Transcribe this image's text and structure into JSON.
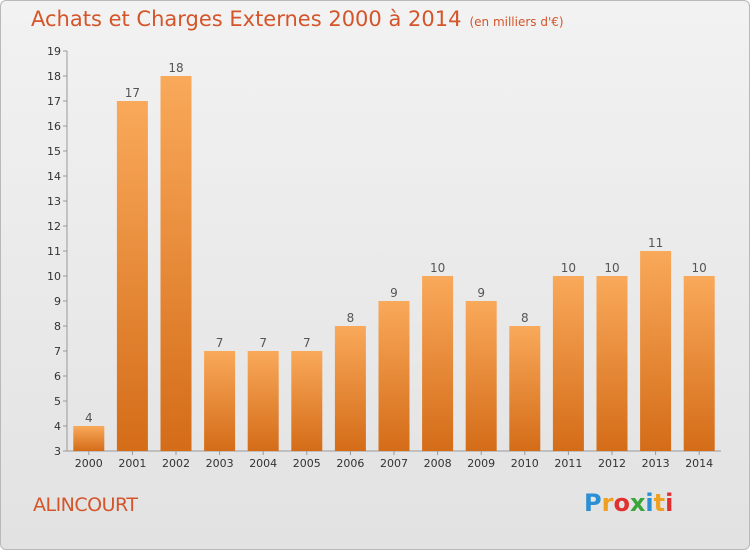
{
  "header": {
    "title": "Achats et Charges Externes 2000 à 2014",
    "unit": "(en milliers d'€)"
  },
  "footer": {
    "commune": "ALINCOURT",
    "logo_letters": [
      "P",
      "r",
      "o",
      "x",
      "i",
      "t",
      "i"
    ],
    "logo_colors": [
      "#2a8fd4",
      "#f0a020",
      "#e03030",
      "#3aa53a",
      "#2a8fd4",
      "#f0a020",
      "#e03030"
    ]
  },
  "chart_data": {
    "type": "bar",
    "title": "Achats et Charges Externes 2000 à 2014",
    "subtitle": "(en milliers d'€)",
    "xlabel": "",
    "ylabel": "",
    "categories": [
      "2000",
      "2001",
      "2002",
      "2003",
      "2004",
      "2005",
      "2006",
      "2007",
      "2008",
      "2009",
      "2010",
      "2011",
      "2012",
      "2013",
      "2014"
    ],
    "values": [
      4,
      17,
      18,
      7,
      7,
      7,
      8,
      9,
      10,
      9,
      8,
      10,
      10,
      11,
      10
    ],
    "ylim": [
      3,
      19
    ],
    "yticks": [
      3,
      4,
      5,
      6,
      7,
      8,
      9,
      10,
      11,
      12,
      13,
      14,
      15,
      16,
      17,
      18,
      19
    ],
    "grid": false,
    "legend": "none",
    "colors": {
      "bar_light": "#f9a95a",
      "bar_dark": "#d46c18",
      "label": "#555555",
      "axis": "#999999"
    }
  }
}
